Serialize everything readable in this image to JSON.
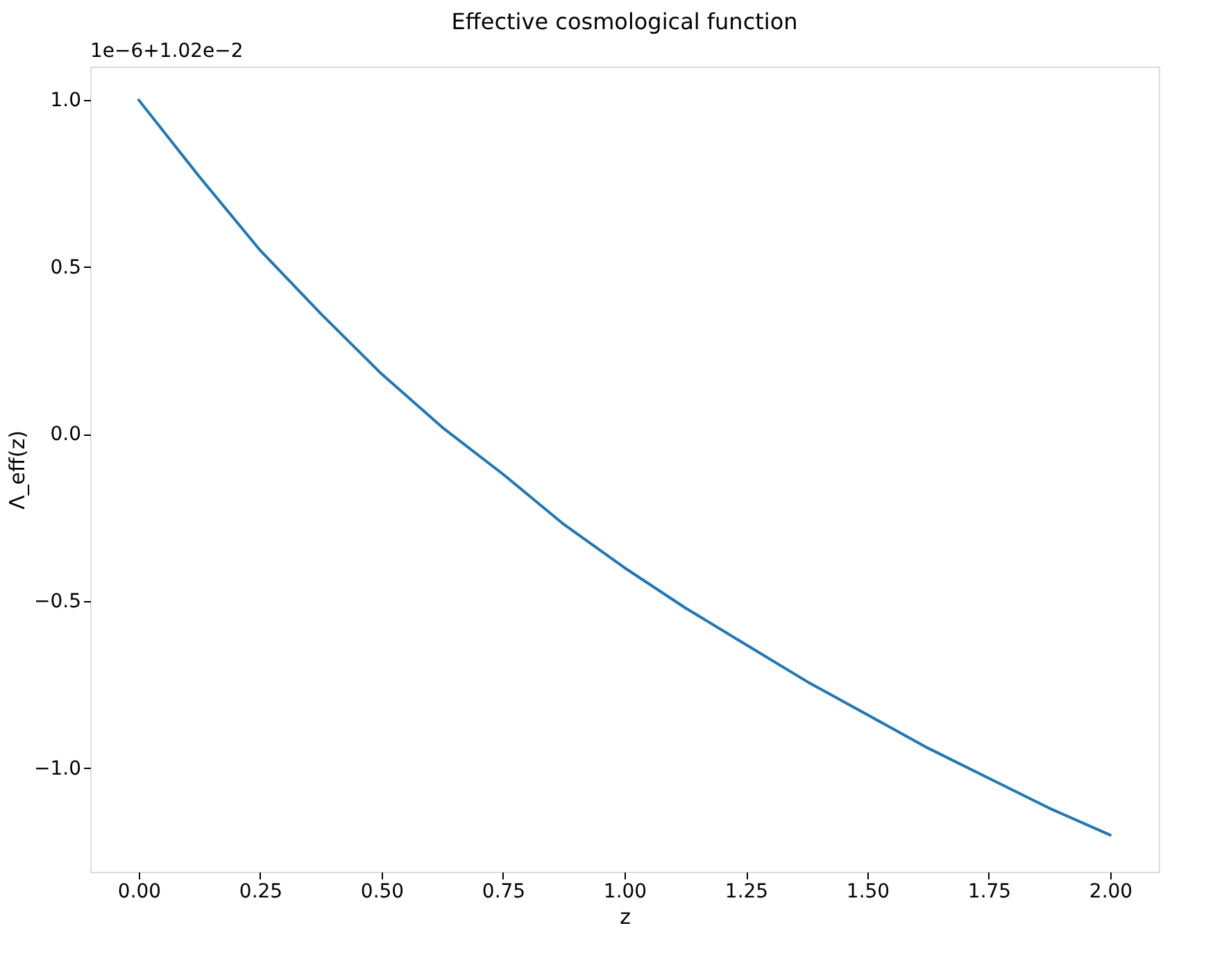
{
  "chart_data": {
    "type": "line",
    "title": "Effective cosmological function",
    "xlabel": "z",
    "ylabel": "Λ_eff(z)",
    "annotations": [
      "1e−6+1.02e−2"
    ],
    "x": [
      0,
      0.125,
      0.25,
      0.375,
      0.5,
      0.625,
      0.75,
      0.875,
      1.0,
      1.125,
      1.25,
      1.375,
      1.5,
      1.625,
      1.75,
      1.875,
      2.0
    ],
    "series": [
      {
        "color": "#1f77b4",
        "values": [
          1.0,
          0.77,
          0.55,
          0.36,
          0.18,
          0.02,
          -0.12,
          -0.27,
          -0.4,
          -0.52,
          -0.63,
          -0.74,
          -0.84,
          -0.94,
          -1.03,
          -1.12,
          -1.2
        ]
      }
    ],
    "xlim": [
      -0.1,
      2.1
    ],
    "ylim": [
      -1.31,
      1.1
    ],
    "xticks": [
      {
        "value": 0,
        "label": "0.00"
      },
      {
        "value": 0.25,
        "label": "0.25"
      },
      {
        "value": 0.5,
        "label": "0.50"
      },
      {
        "value": 0.75,
        "label": "0.75"
      },
      {
        "value": 1,
        "label": "1.00"
      },
      {
        "value": 1.25,
        "label": "1.25"
      },
      {
        "value": 1.5,
        "label": "1.50"
      },
      {
        "value": 1.75,
        "label": "1.75"
      },
      {
        "value": 2,
        "label": "2.00"
      }
    ],
    "yticks": [
      {
        "value": -1,
        "label": "−1.0"
      },
      {
        "value": -0.5,
        "label": "−0.5"
      },
      {
        "value": 0,
        "label": "0.0"
      },
      {
        "value": 0.5,
        "label": "0.5"
      },
      {
        "value": 1,
        "label": "1.0"
      }
    ]
  }
}
